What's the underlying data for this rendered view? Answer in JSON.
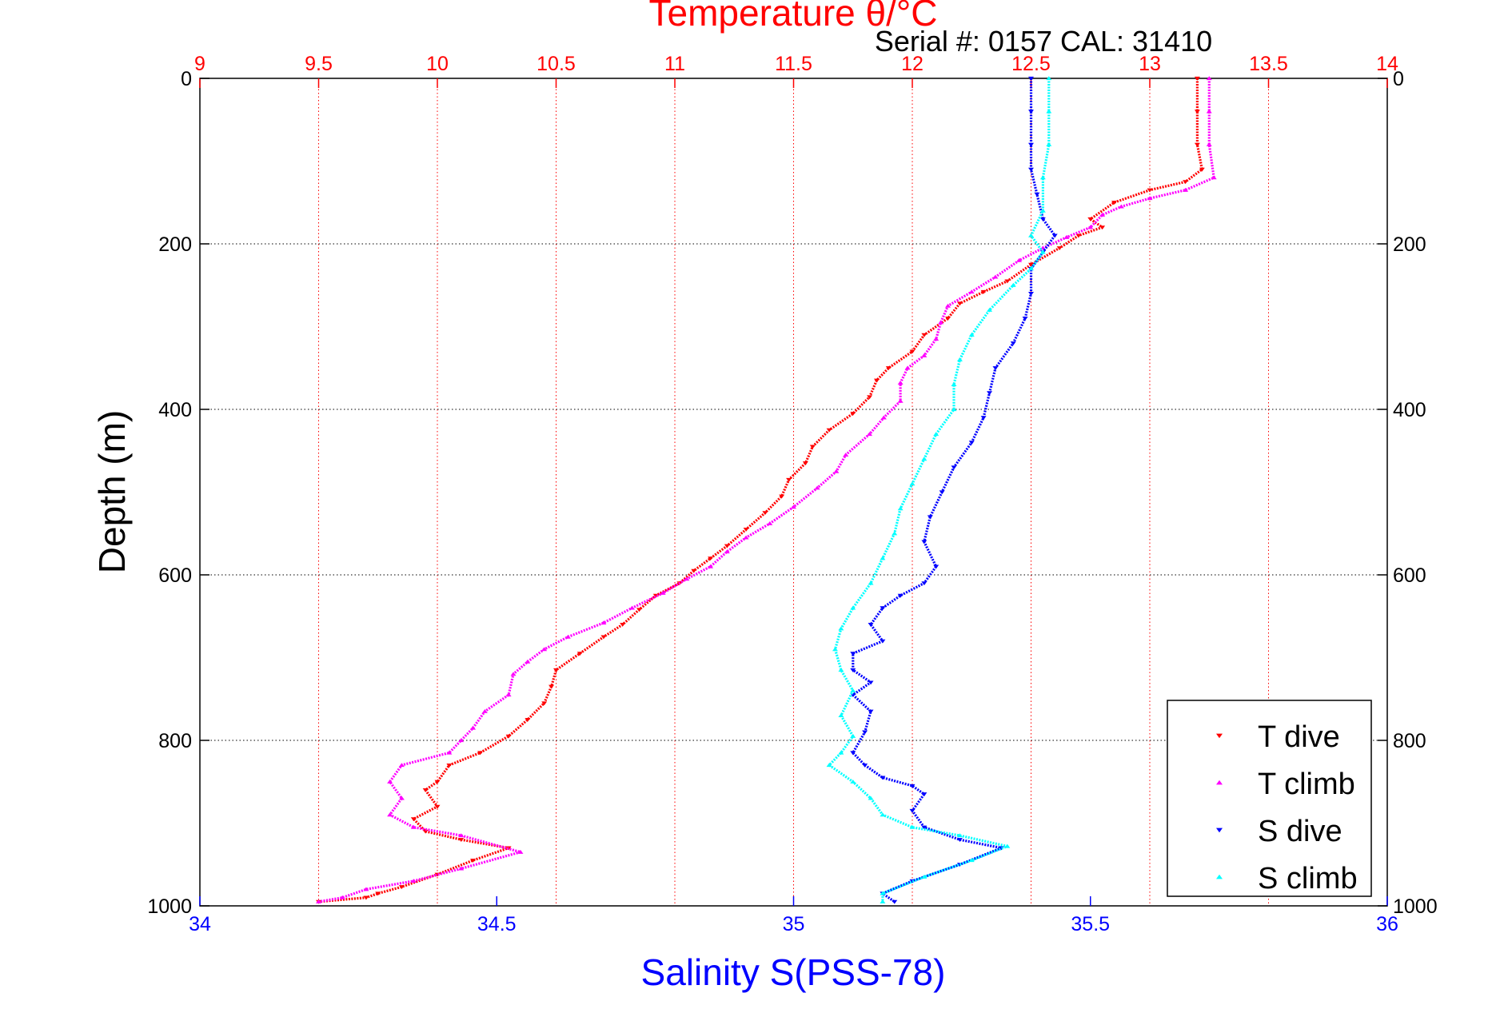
{
  "chart_data": {
    "type": "scatter",
    "title_top": "Temperature θ/°C",
    "subtitle": "Serial #: 0157  CAL: 31410",
    "xlabel_bottom": "Salinity S(PSS-78)",
    "ylabel": "Depth (m)",
    "ylim": [
      0,
      1000
    ],
    "y_reversed": true,
    "temp_lim": [
      9,
      14
    ],
    "sal_lim": [
      34,
      36
    ],
    "y_ticks": [
      0,
      200,
      400,
      600,
      800,
      1000
    ],
    "temp_ticks": [
      9,
      9.5,
      10,
      10.5,
      11,
      11.5,
      12,
      12.5,
      13,
      13.5,
      14
    ],
    "sal_ticks": [
      34,
      34.5,
      35,
      35.5,
      36
    ],
    "grid": true,
    "legend_position": "bottom-right",
    "colors": {
      "temperature_axis": "#ff0000",
      "salinity_axis": "#0000ff",
      "grid_temperature": "#ff0000",
      "grid_depth": "#000000"
    },
    "series": [
      {
        "name": "T dive",
        "axis": "temperature",
        "marker": "triangle-down",
        "color": "#ff0000",
        "points": [
          [
            13.2,
            0
          ],
          [
            13.2,
            40
          ],
          [
            13.2,
            80
          ],
          [
            13.22,
            110
          ],
          [
            13.15,
            125
          ],
          [
            13.0,
            135
          ],
          [
            12.85,
            150
          ],
          [
            12.75,
            170
          ],
          [
            12.8,
            180
          ],
          [
            12.7,
            190
          ],
          [
            12.62,
            205
          ],
          [
            12.5,
            225
          ],
          [
            12.4,
            245
          ],
          [
            12.3,
            258
          ],
          [
            12.2,
            272
          ],
          [
            12.15,
            290
          ],
          [
            12.05,
            310
          ],
          [
            12.0,
            330
          ],
          [
            11.9,
            350
          ],
          [
            11.85,
            365
          ],
          [
            11.82,
            385
          ],
          [
            11.75,
            405
          ],
          [
            11.65,
            425
          ],
          [
            11.58,
            445
          ],
          [
            11.55,
            465
          ],
          [
            11.48,
            485
          ],
          [
            11.45,
            505
          ],
          [
            11.38,
            525
          ],
          [
            11.3,
            545
          ],
          [
            11.22,
            565
          ],
          [
            11.15,
            580
          ],
          [
            11.08,
            595
          ],
          [
            11.02,
            610
          ],
          [
            10.92,
            625
          ],
          [
            10.85,
            642
          ],
          [
            10.78,
            660
          ],
          [
            10.7,
            675
          ],
          [
            10.6,
            695
          ],
          [
            10.5,
            715
          ],
          [
            10.48,
            735
          ],
          [
            10.45,
            755
          ],
          [
            10.38,
            775
          ],
          [
            10.3,
            795
          ],
          [
            10.18,
            815
          ],
          [
            10.05,
            830
          ],
          [
            10.0,
            850
          ],
          [
            9.95,
            860
          ],
          [
            10.0,
            880
          ],
          [
            9.9,
            895
          ],
          [
            9.95,
            910
          ],
          [
            10.1,
            920
          ],
          [
            10.3,
            930
          ],
          [
            10.15,
            945
          ],
          [
            10.0,
            962
          ],
          [
            9.85,
            977
          ],
          [
            9.75,
            985
          ],
          [
            9.7,
            990
          ],
          [
            9.5,
            995
          ]
        ]
      },
      {
        "name": "T climb",
        "axis": "temperature",
        "marker": "triangle-up",
        "color": "#ff00ff",
        "points": [
          [
            13.25,
            0
          ],
          [
            13.25,
            40
          ],
          [
            13.25,
            80
          ],
          [
            13.27,
            120
          ],
          [
            13.15,
            135
          ],
          [
            13.0,
            145
          ],
          [
            12.88,
            155
          ],
          [
            12.8,
            165
          ],
          [
            12.75,
            180
          ],
          [
            12.65,
            192
          ],
          [
            12.55,
            205
          ],
          [
            12.45,
            220
          ],
          [
            12.35,
            240
          ],
          [
            12.25,
            258
          ],
          [
            12.15,
            275
          ],
          [
            12.12,
            295
          ],
          [
            12.1,
            315
          ],
          [
            12.05,
            335
          ],
          [
            11.98,
            350
          ],
          [
            11.95,
            368
          ],
          [
            11.95,
            390
          ],
          [
            11.88,
            410
          ],
          [
            11.82,
            430
          ],
          [
            11.72,
            455
          ],
          [
            11.68,
            475
          ],
          [
            11.6,
            495
          ],
          [
            11.5,
            518
          ],
          [
            11.4,
            538
          ],
          [
            11.3,
            555
          ],
          [
            11.22,
            572
          ],
          [
            11.15,
            590
          ],
          [
            11.05,
            605
          ],
          [
            10.95,
            622
          ],
          [
            10.82,
            640
          ],
          [
            10.7,
            658
          ],
          [
            10.55,
            675
          ],
          [
            10.45,
            690
          ],
          [
            10.38,
            705
          ],
          [
            10.32,
            720
          ],
          [
            10.3,
            745
          ],
          [
            10.2,
            765
          ],
          [
            10.15,
            785
          ],
          [
            10.1,
            800
          ],
          [
            10.05,
            815
          ],
          [
            9.85,
            830
          ],
          [
            9.8,
            850
          ],
          [
            9.85,
            870
          ],
          [
            9.8,
            890
          ],
          [
            9.9,
            905
          ],
          [
            10.1,
            915
          ],
          [
            10.35,
            935
          ],
          [
            10.1,
            955
          ],
          [
            9.9,
            970
          ],
          [
            9.7,
            980
          ],
          [
            9.6,
            990
          ],
          [
            9.5,
            995
          ]
        ]
      },
      {
        "name": "S dive",
        "axis": "salinity",
        "marker": "triangle-down",
        "color": "#0000ff",
        "points": [
          [
            35.4,
            0
          ],
          [
            35.4,
            40
          ],
          [
            35.4,
            80
          ],
          [
            35.4,
            110
          ],
          [
            35.41,
            140
          ],
          [
            35.42,
            170
          ],
          [
            35.44,
            190
          ],
          [
            35.42,
            210
          ],
          [
            35.4,
            230
          ],
          [
            35.4,
            260
          ],
          [
            35.39,
            290
          ],
          [
            35.37,
            320
          ],
          [
            35.34,
            350
          ],
          [
            35.33,
            380
          ],
          [
            35.32,
            410
          ],
          [
            35.3,
            440
          ],
          [
            35.27,
            470
          ],
          [
            35.25,
            500
          ],
          [
            35.23,
            530
          ],
          [
            35.22,
            560
          ],
          [
            35.24,
            590
          ],
          [
            35.22,
            610
          ],
          [
            35.18,
            625
          ],
          [
            35.15,
            640
          ],
          [
            35.13,
            660
          ],
          [
            35.15,
            680
          ],
          [
            35.1,
            695
          ],
          [
            35.1,
            715
          ],
          [
            35.13,
            730
          ],
          [
            35.1,
            745
          ],
          [
            35.13,
            765
          ],
          [
            35.12,
            790
          ],
          [
            35.1,
            815
          ],
          [
            35.12,
            830
          ],
          [
            35.15,
            845
          ],
          [
            35.2,
            855
          ],
          [
            35.22,
            865
          ],
          [
            35.2,
            885
          ],
          [
            35.22,
            905
          ],
          [
            35.28,
            920
          ],
          [
            35.35,
            930
          ],
          [
            35.28,
            950
          ],
          [
            35.2,
            970
          ],
          [
            35.15,
            985
          ],
          [
            35.17,
            995
          ]
        ]
      },
      {
        "name": "S climb",
        "axis": "salinity",
        "marker": "triangle-up",
        "color": "#00ffff",
        "points": [
          [
            35.43,
            0
          ],
          [
            35.43,
            40
          ],
          [
            35.43,
            80
          ],
          [
            35.42,
            120
          ],
          [
            35.42,
            160
          ],
          [
            35.4,
            190
          ],
          [
            35.42,
            210
          ],
          [
            35.4,
            230
          ],
          [
            35.37,
            250
          ],
          [
            35.33,
            280
          ],
          [
            35.3,
            310
          ],
          [
            35.28,
            340
          ],
          [
            35.27,
            370
          ],
          [
            35.27,
            400
          ],
          [
            35.24,
            430
          ],
          [
            35.22,
            460
          ],
          [
            35.2,
            490
          ],
          [
            35.18,
            520
          ],
          [
            35.17,
            550
          ],
          [
            35.15,
            580
          ],
          [
            35.13,
            610
          ],
          [
            35.1,
            640
          ],
          [
            35.08,
            665
          ],
          [
            35.07,
            690
          ],
          [
            35.08,
            715
          ],
          [
            35.1,
            740
          ],
          [
            35.08,
            770
          ],
          [
            35.1,
            795
          ],
          [
            35.08,
            815
          ],
          [
            35.06,
            830
          ],
          [
            35.1,
            850
          ],
          [
            35.13,
            870
          ],
          [
            35.15,
            890
          ],
          [
            35.2,
            905
          ],
          [
            35.28,
            915
          ],
          [
            35.36,
            928
          ],
          [
            35.3,
            945
          ],
          [
            35.22,
            965
          ],
          [
            35.15,
            985
          ],
          [
            35.15,
            995
          ]
        ]
      }
    ]
  }
}
